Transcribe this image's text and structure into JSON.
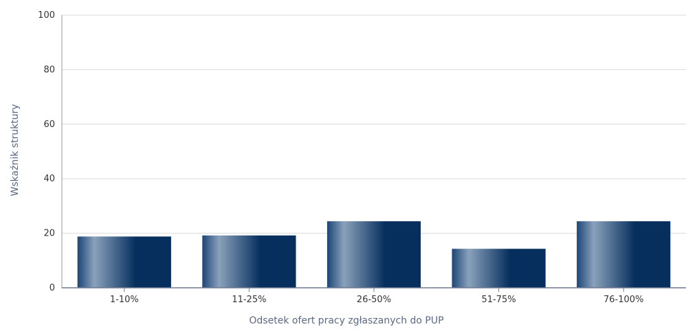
{
  "chart_data": {
    "type": "bar",
    "title": "",
    "xlabel": "Odsetek ofert pracy zgłaszanych do PUP",
    "ylabel": "Wskaźnik struktury",
    "categories": [
      "1-10%",
      "11-25%",
      "26-50%",
      "51-75%",
      "76-100%"
    ],
    "values": [
      18.8,
      19.2,
      24.4,
      14.3,
      24.4
    ],
    "ylim": [
      0,
      100
    ],
    "yticks": [
      0,
      20,
      40,
      60,
      80,
      100
    ],
    "grid": true,
    "legend": "none",
    "colors": {
      "bar_dark": "#062f5e",
      "bar_mid": "#1c4576",
      "bar_light": "#8aa1bb",
      "grid": "#d9d9d9",
      "axis": "#5a6a85"
    }
  }
}
